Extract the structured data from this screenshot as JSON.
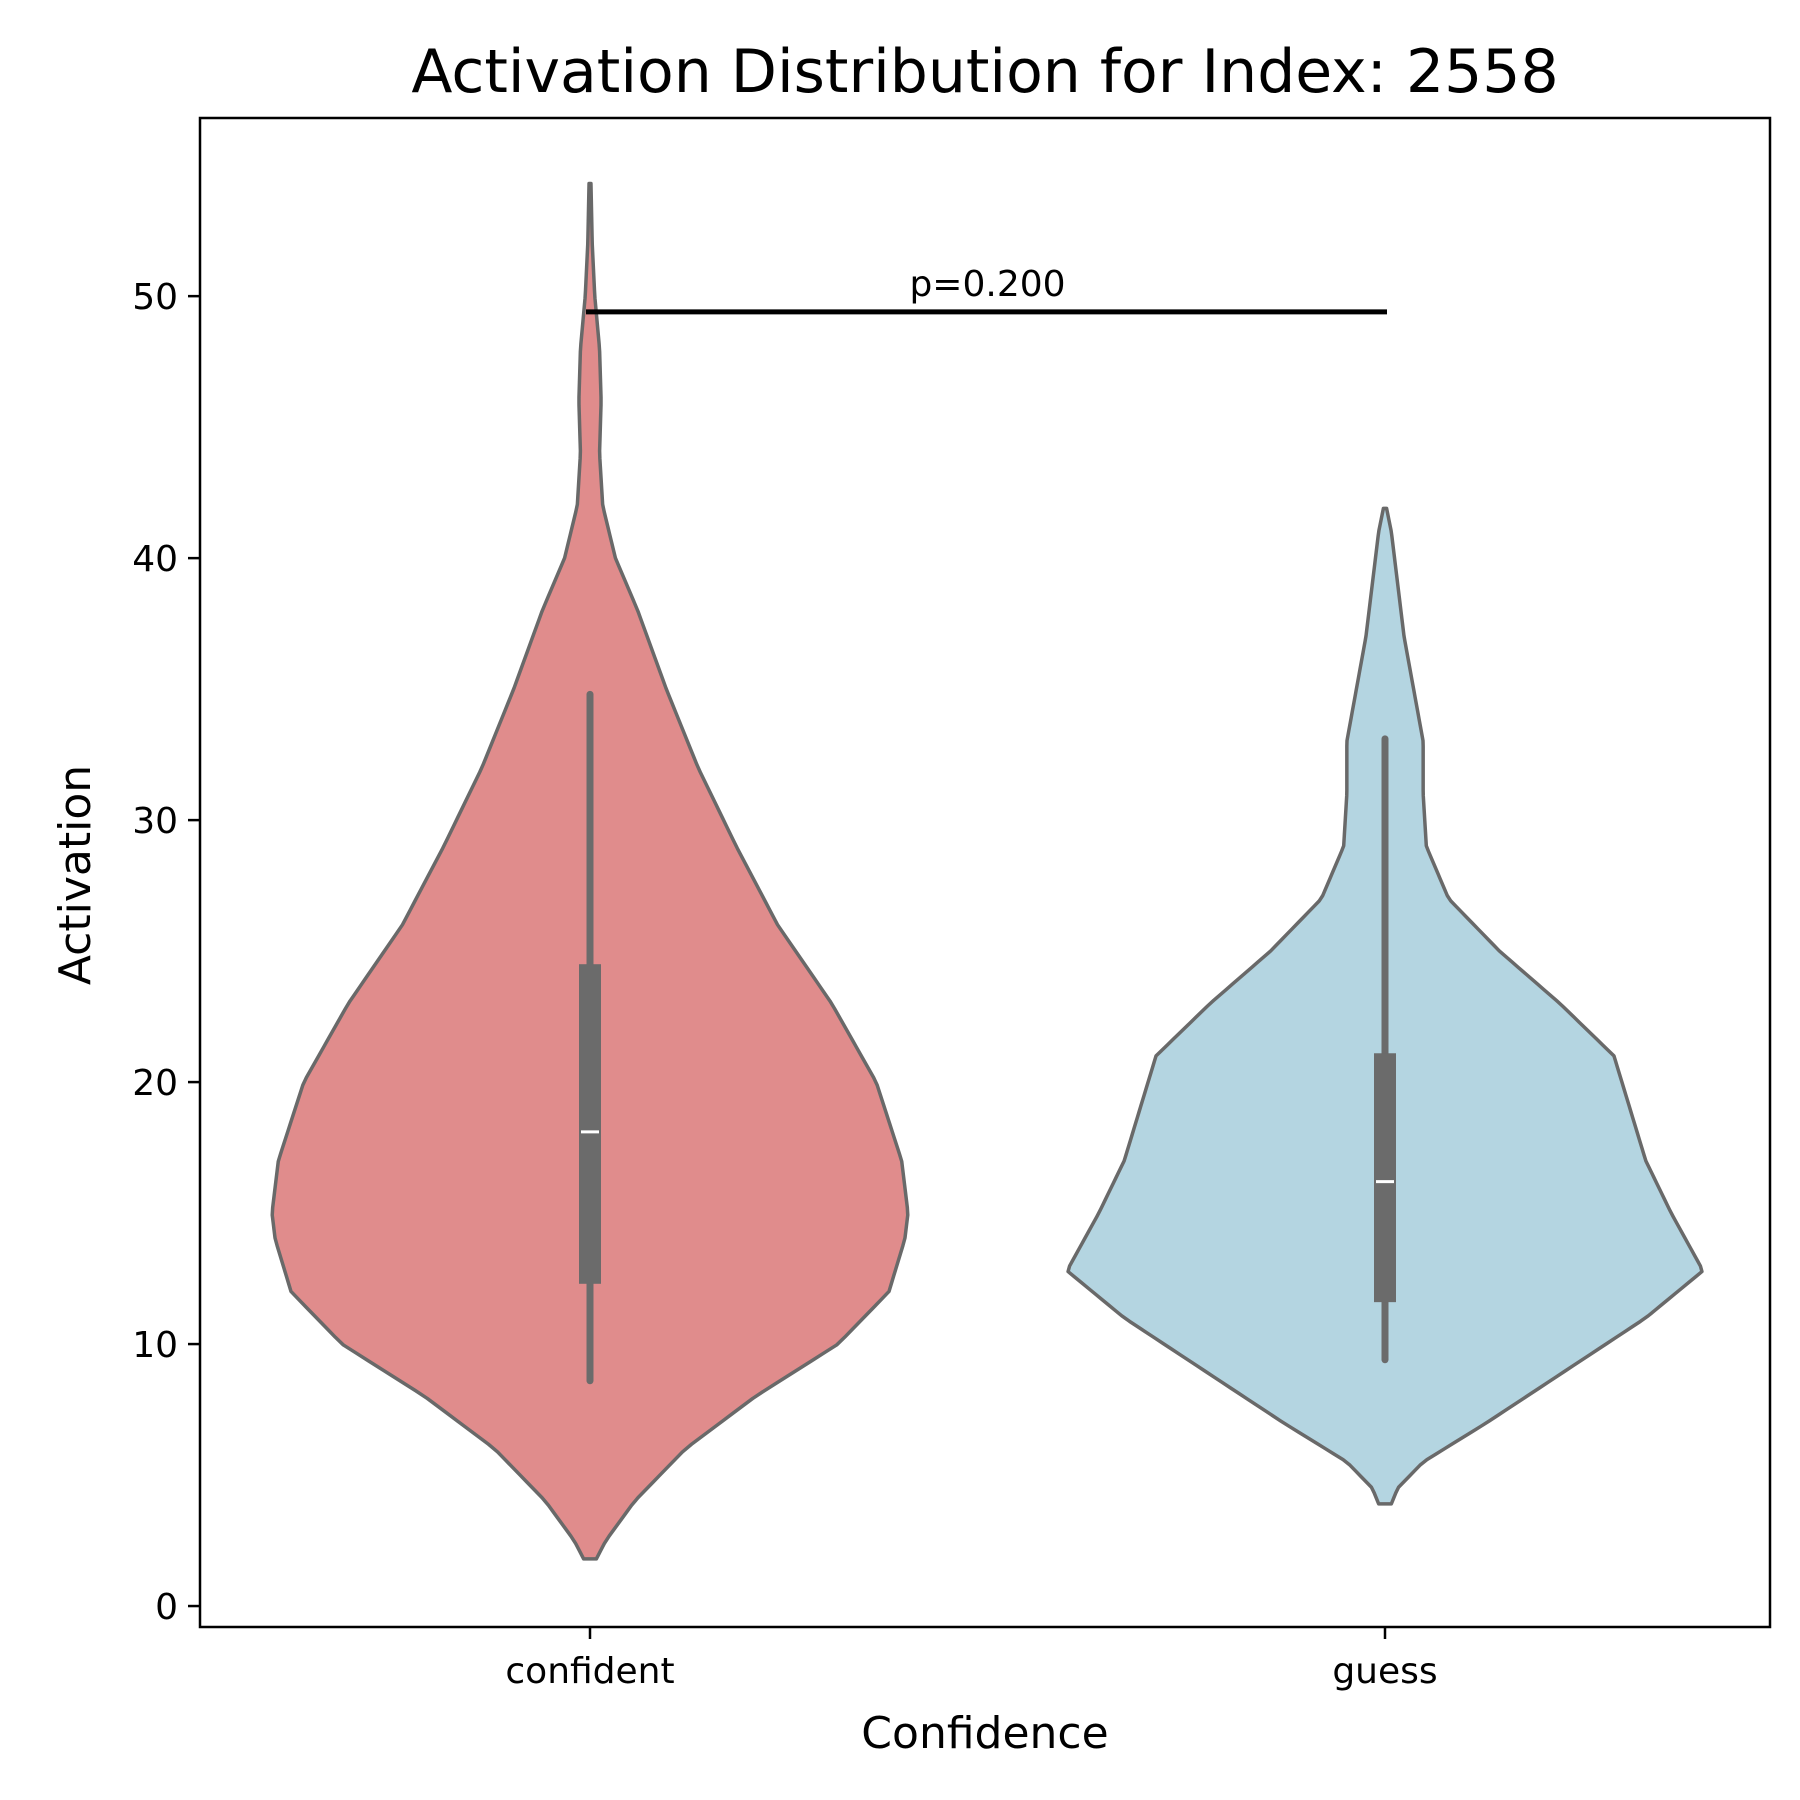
{
  "chart_data": {
    "type": "violin",
    "title": "Activation Distribution for Index: 2558",
    "xlabel": "Confidence",
    "ylabel": "Activation",
    "categories": [
      "confident",
      "guess"
    ],
    "ylim": [
      -0.8,
      56.8
    ],
    "yticks": [
      0,
      10,
      20,
      30,
      40,
      50
    ],
    "grid": false,
    "legend": "none",
    "colors": {
      "confident": "#e08c8c",
      "guess": "#b4d5e1",
      "outline": "#696969",
      "box": "#6b6b6b",
      "median": "#ffffff"
    },
    "series": [
      {
        "category": "confident",
        "min": 8.6,
        "q1": 12.3,
        "median": 18.1,
        "q3": 24.5,
        "max": 34.8,
        "density_profile": [
          [
            1.8,
            0.02
          ],
          [
            2.5,
            0.05
          ],
          [
            4,
            0.14
          ],
          [
            6,
            0.3
          ],
          [
            8,
            0.52
          ],
          [
            10,
            0.78
          ],
          [
            12,
            0.94
          ],
          [
            14,
            0.99
          ],
          [
            15,
            1.0
          ],
          [
            17,
            0.98
          ],
          [
            20,
            0.9
          ],
          [
            23,
            0.76
          ],
          [
            26,
            0.59
          ],
          [
            29,
            0.46
          ],
          [
            32,
            0.34
          ],
          [
            35,
            0.24
          ],
          [
            38,
            0.15
          ],
          [
            40,
            0.08
          ],
          [
            42,
            0.04
          ],
          [
            44,
            0.03
          ],
          [
            46,
            0.035
          ],
          [
            48,
            0.03
          ],
          [
            50,
            0.015
          ],
          [
            52,
            0.007
          ],
          [
            54.3,
            0.003
          ]
        ]
      },
      {
        "category": "guess",
        "min": 9.4,
        "q1": 11.6,
        "median": 16.2,
        "q3": 21.1,
        "max": 33.1,
        "density_profile": [
          [
            3.9,
            0.02
          ],
          [
            4.5,
            0.04
          ],
          [
            5.5,
            0.12
          ],
          [
            7,
            0.32
          ],
          [
            9,
            0.57
          ],
          [
            11,
            0.82
          ],
          [
            12.8,
            1.0
          ],
          [
            15,
            0.9
          ],
          [
            17,
            0.82
          ],
          [
            19,
            0.77
          ],
          [
            21,
            0.72
          ],
          [
            23,
            0.55
          ],
          [
            25,
            0.36
          ],
          [
            27,
            0.2
          ],
          [
            29,
            0.13
          ],
          [
            31,
            0.12
          ],
          [
            33,
            0.12
          ],
          [
            35,
            0.09
          ],
          [
            37,
            0.06
          ],
          [
            39,
            0.04
          ],
          [
            41,
            0.02
          ],
          [
            41.9,
            0.005
          ]
        ]
      }
    ],
    "annotation": {
      "text": "p=0.200",
      "y": 49.4
    }
  }
}
